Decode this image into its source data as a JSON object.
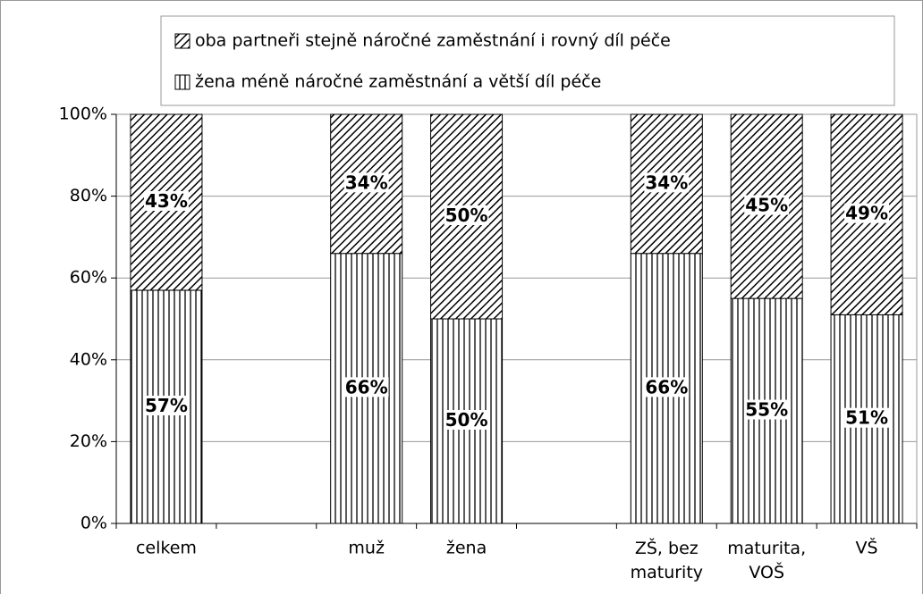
{
  "chart_data": {
    "type": "bar",
    "stacked": true,
    "categories": [
      "celkem",
      null,
      "muž",
      "žena",
      null,
      "ZŠ, bez maturity",
      "maturita, VOŠ",
      "VŠ"
    ],
    "series": [
      {
        "name": "žena méně náročné zaměstnání a větší díl péče",
        "color": "#000000",
        "pattern": "vertical",
        "values": [
          57,
          null,
          66,
          50,
          null,
          66,
          55,
          51
        ],
        "value_labels": [
          "57%",
          null,
          "66%",
          "50%",
          null,
          "66%",
          "55%",
          "51%"
        ]
      },
      {
        "name": "oba partneři stejně náročné zaměstnání i rovný díl péče",
        "color": "#000000",
        "pattern": "diagonal",
        "values": [
          43,
          null,
          34,
          50,
          null,
          34,
          45,
          49
        ],
        "value_labels": [
          "43%",
          null,
          "34%",
          "50%",
          null,
          "34%",
          "45%",
          "49%"
        ]
      }
    ],
    "ylim": [
      0,
      100
    ],
    "yticks": [
      {
        "value": 0,
        "label": "0%"
      },
      {
        "value": 20,
        "label": "20%"
      },
      {
        "value": 40,
        "label": "40%"
      },
      {
        "value": 60,
        "label": "60%"
      },
      {
        "value": 80,
        "label": "80%"
      },
      {
        "value": 100,
        "label": "100%"
      }
    ],
    "grid": true
  }
}
